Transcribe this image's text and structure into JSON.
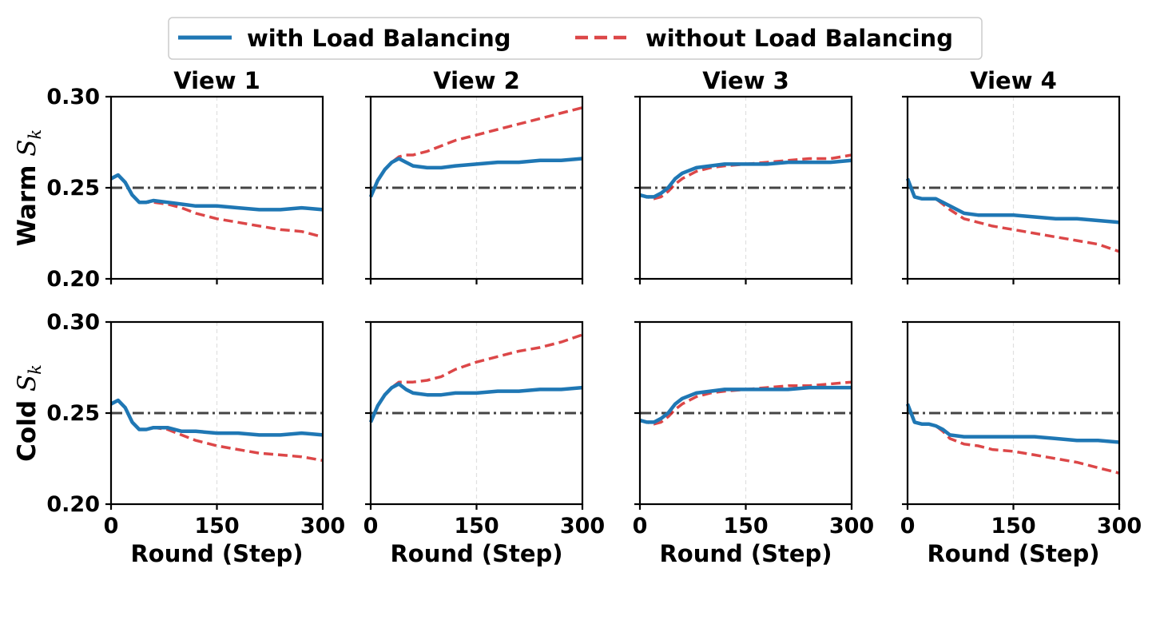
{
  "chart_data": {
    "type": "line",
    "legend": {
      "placement": "top-center",
      "entries": [
        {
          "label": "with Load Balancing",
          "color": "#1f77b4",
          "style": "solid"
        },
        {
          "label": "without Load Balancing",
          "color": "#d62728",
          "style": "dashed"
        }
      ]
    },
    "reference_line": {
      "y": 0.25,
      "color": "#444444",
      "style": "dash-dot"
    },
    "columns": [
      "View 1",
      "View 2",
      "View 3",
      "View 4"
    ],
    "row_labels": [
      "Warm",
      "Cold"
    ],
    "y_symbol": "S",
    "y_subscript": "k",
    "xlabel": "Round (Step)",
    "xlim": [
      0,
      300
    ],
    "ylim": [
      0.2,
      0.3
    ],
    "xticks": [
      "0",
      "150",
      "300"
    ],
    "yticks": [
      "0.20",
      "0.25",
      "0.30"
    ],
    "x_grid_at": 150,
    "x": [
      0,
      10,
      20,
      30,
      40,
      50,
      60,
      80,
      100,
      120,
      150,
      180,
      210,
      240,
      270,
      300
    ],
    "panels": [
      {
        "row": "Warm",
        "view": "View 1",
        "with": [
          0.255,
          0.257,
          0.253,
          0.246,
          0.242,
          0.242,
          0.243,
          0.242,
          0.241,
          0.24,
          0.24,
          0.239,
          0.238,
          0.238,
          0.239,
          0.238
        ],
        "without": [
          0.255,
          0.257,
          0.253,
          0.246,
          0.242,
          0.242,
          0.242,
          0.241,
          0.239,
          0.236,
          0.233,
          0.231,
          0.229,
          0.227,
          0.226,
          0.223
        ]
      },
      {
        "row": "Warm",
        "view": "View 2",
        "with": [
          0.245,
          0.254,
          0.26,
          0.264,
          0.266,
          0.264,
          0.262,
          0.261,
          0.261,
          0.262,
          0.263,
          0.264,
          0.264,
          0.265,
          0.265,
          0.266
        ]
      },
      {
        "row": "Warm",
        "view": "View 2",
        "series_note": "",
        "without": [
          0.245,
          0.254,
          0.26,
          0.264,
          0.267,
          0.268,
          0.268,
          0.27,
          0.273,
          0.276,
          0.279,
          0.282,
          0.285,
          0.288,
          0.291,
          0.294
        ]
      },
      {
        "row": "Warm",
        "view": "View 3",
        "with": [
          0.246,
          0.245,
          0.245,
          0.247,
          0.25,
          0.255,
          0.258,
          0.261,
          0.262,
          0.263,
          0.263,
          0.263,
          0.264,
          0.264,
          0.264,
          0.265
        ],
        "without": [
          0.246,
          0.245,
          0.244,
          0.245,
          0.248,
          0.252,
          0.255,
          0.259,
          0.261,
          0.262,
          0.263,
          0.264,
          0.265,
          0.266,
          0.266,
          0.268
        ]
      },
      {
        "row": "Warm",
        "view": "View 4",
        "with": [
          0.255,
          0.245,
          0.244,
          0.244,
          0.244,
          0.242,
          0.24,
          0.236,
          0.235,
          0.235,
          0.235,
          0.234,
          0.233,
          0.233,
          0.232,
          0.231
        ],
        "without": [
          0.255,
          0.245,
          0.244,
          0.244,
          0.244,
          0.241,
          0.238,
          0.233,
          0.231,
          0.229,
          0.227,
          0.225,
          0.223,
          0.221,
          0.219,
          0.215
        ]
      },
      {
        "row": "Cold",
        "view": "View 1",
        "with": [
          0.255,
          0.257,
          0.253,
          0.245,
          0.241,
          0.241,
          0.242,
          0.242,
          0.24,
          0.24,
          0.239,
          0.239,
          0.238,
          0.238,
          0.239,
          0.238
        ],
        "without": [
          0.255,
          0.257,
          0.253,
          0.245,
          0.241,
          0.241,
          0.242,
          0.241,
          0.238,
          0.235,
          0.232,
          0.23,
          0.228,
          0.227,
          0.226,
          0.224
        ]
      },
      {
        "row": "Cold",
        "view": "View 2",
        "with": [
          0.245,
          0.254,
          0.26,
          0.264,
          0.266,
          0.263,
          0.261,
          0.26,
          0.26,
          0.261,
          0.261,
          0.262,
          0.262,
          0.263,
          0.263,
          0.264
        ],
        "without": [
          0.245,
          0.254,
          0.26,
          0.264,
          0.267,
          0.267,
          0.267,
          0.268,
          0.27,
          0.274,
          0.278,
          0.281,
          0.284,
          0.286,
          0.289,
          0.293
        ]
      },
      {
        "row": "Cold",
        "view": "View 3",
        "with": [
          0.246,
          0.245,
          0.245,
          0.247,
          0.25,
          0.255,
          0.258,
          0.261,
          0.262,
          0.263,
          0.263,
          0.263,
          0.263,
          0.264,
          0.264,
          0.264
        ],
        "without": [
          0.246,
          0.245,
          0.244,
          0.245,
          0.248,
          0.252,
          0.255,
          0.259,
          0.261,
          0.262,
          0.263,
          0.264,
          0.265,
          0.265,
          0.266,
          0.267
        ]
      },
      {
        "row": "Cold",
        "view": "View 4",
        "with": [
          0.255,
          0.245,
          0.244,
          0.244,
          0.243,
          0.241,
          0.238,
          0.237,
          0.237,
          0.237,
          0.237,
          0.237,
          0.236,
          0.235,
          0.235,
          0.234
        ],
        "without": [
          0.255,
          0.245,
          0.244,
          0.244,
          0.243,
          0.24,
          0.236,
          0.233,
          0.232,
          0.23,
          0.229,
          0.227,
          0.225,
          0.223,
          0.22,
          0.217
        ]
      }
    ]
  }
}
